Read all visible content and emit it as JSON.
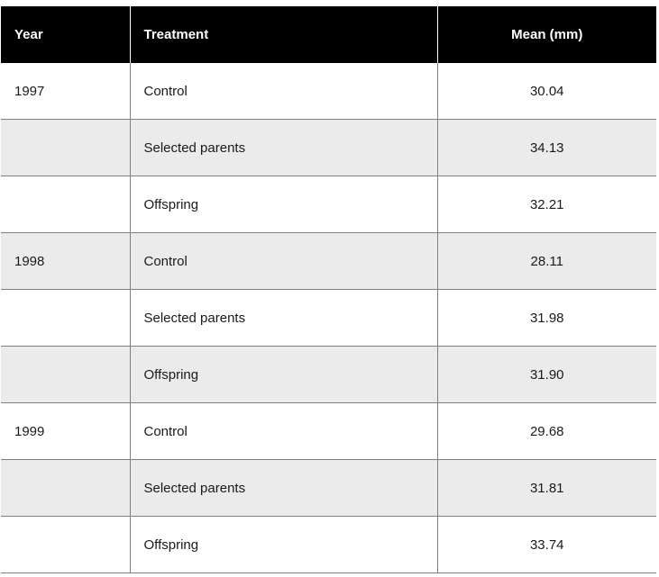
{
  "chart_data": {
    "type": "table",
    "columns": [
      "Year",
      "Treatment",
      "Mean (mm)"
    ],
    "rows": [
      {
        "year": "1997",
        "treatment": "Control",
        "mean": "30.04"
      },
      {
        "year": "",
        "treatment": "Selected parents",
        "mean": "34.13"
      },
      {
        "year": "",
        "treatment": "Offspring",
        "mean": "32.21"
      },
      {
        "year": "1998",
        "treatment": "Control",
        "mean": "28.11"
      },
      {
        "year": "",
        "treatment": "Selected parents",
        "mean": "31.98"
      },
      {
        "year": "",
        "treatment": "Offspring",
        "mean": "31.90"
      },
      {
        "year": "1999",
        "treatment": "Control",
        "mean": "29.68"
      },
      {
        "year": "",
        "treatment": "Selected parents",
        "mean": "31.81"
      },
      {
        "year": "",
        "treatment": "Offspring",
        "mean": "33.74"
      }
    ]
  },
  "colors": {
    "header_bg": "#000000",
    "header_text": "#ffffff",
    "row_shade": "#ebebeb",
    "grid": "#7f7f7f"
  }
}
